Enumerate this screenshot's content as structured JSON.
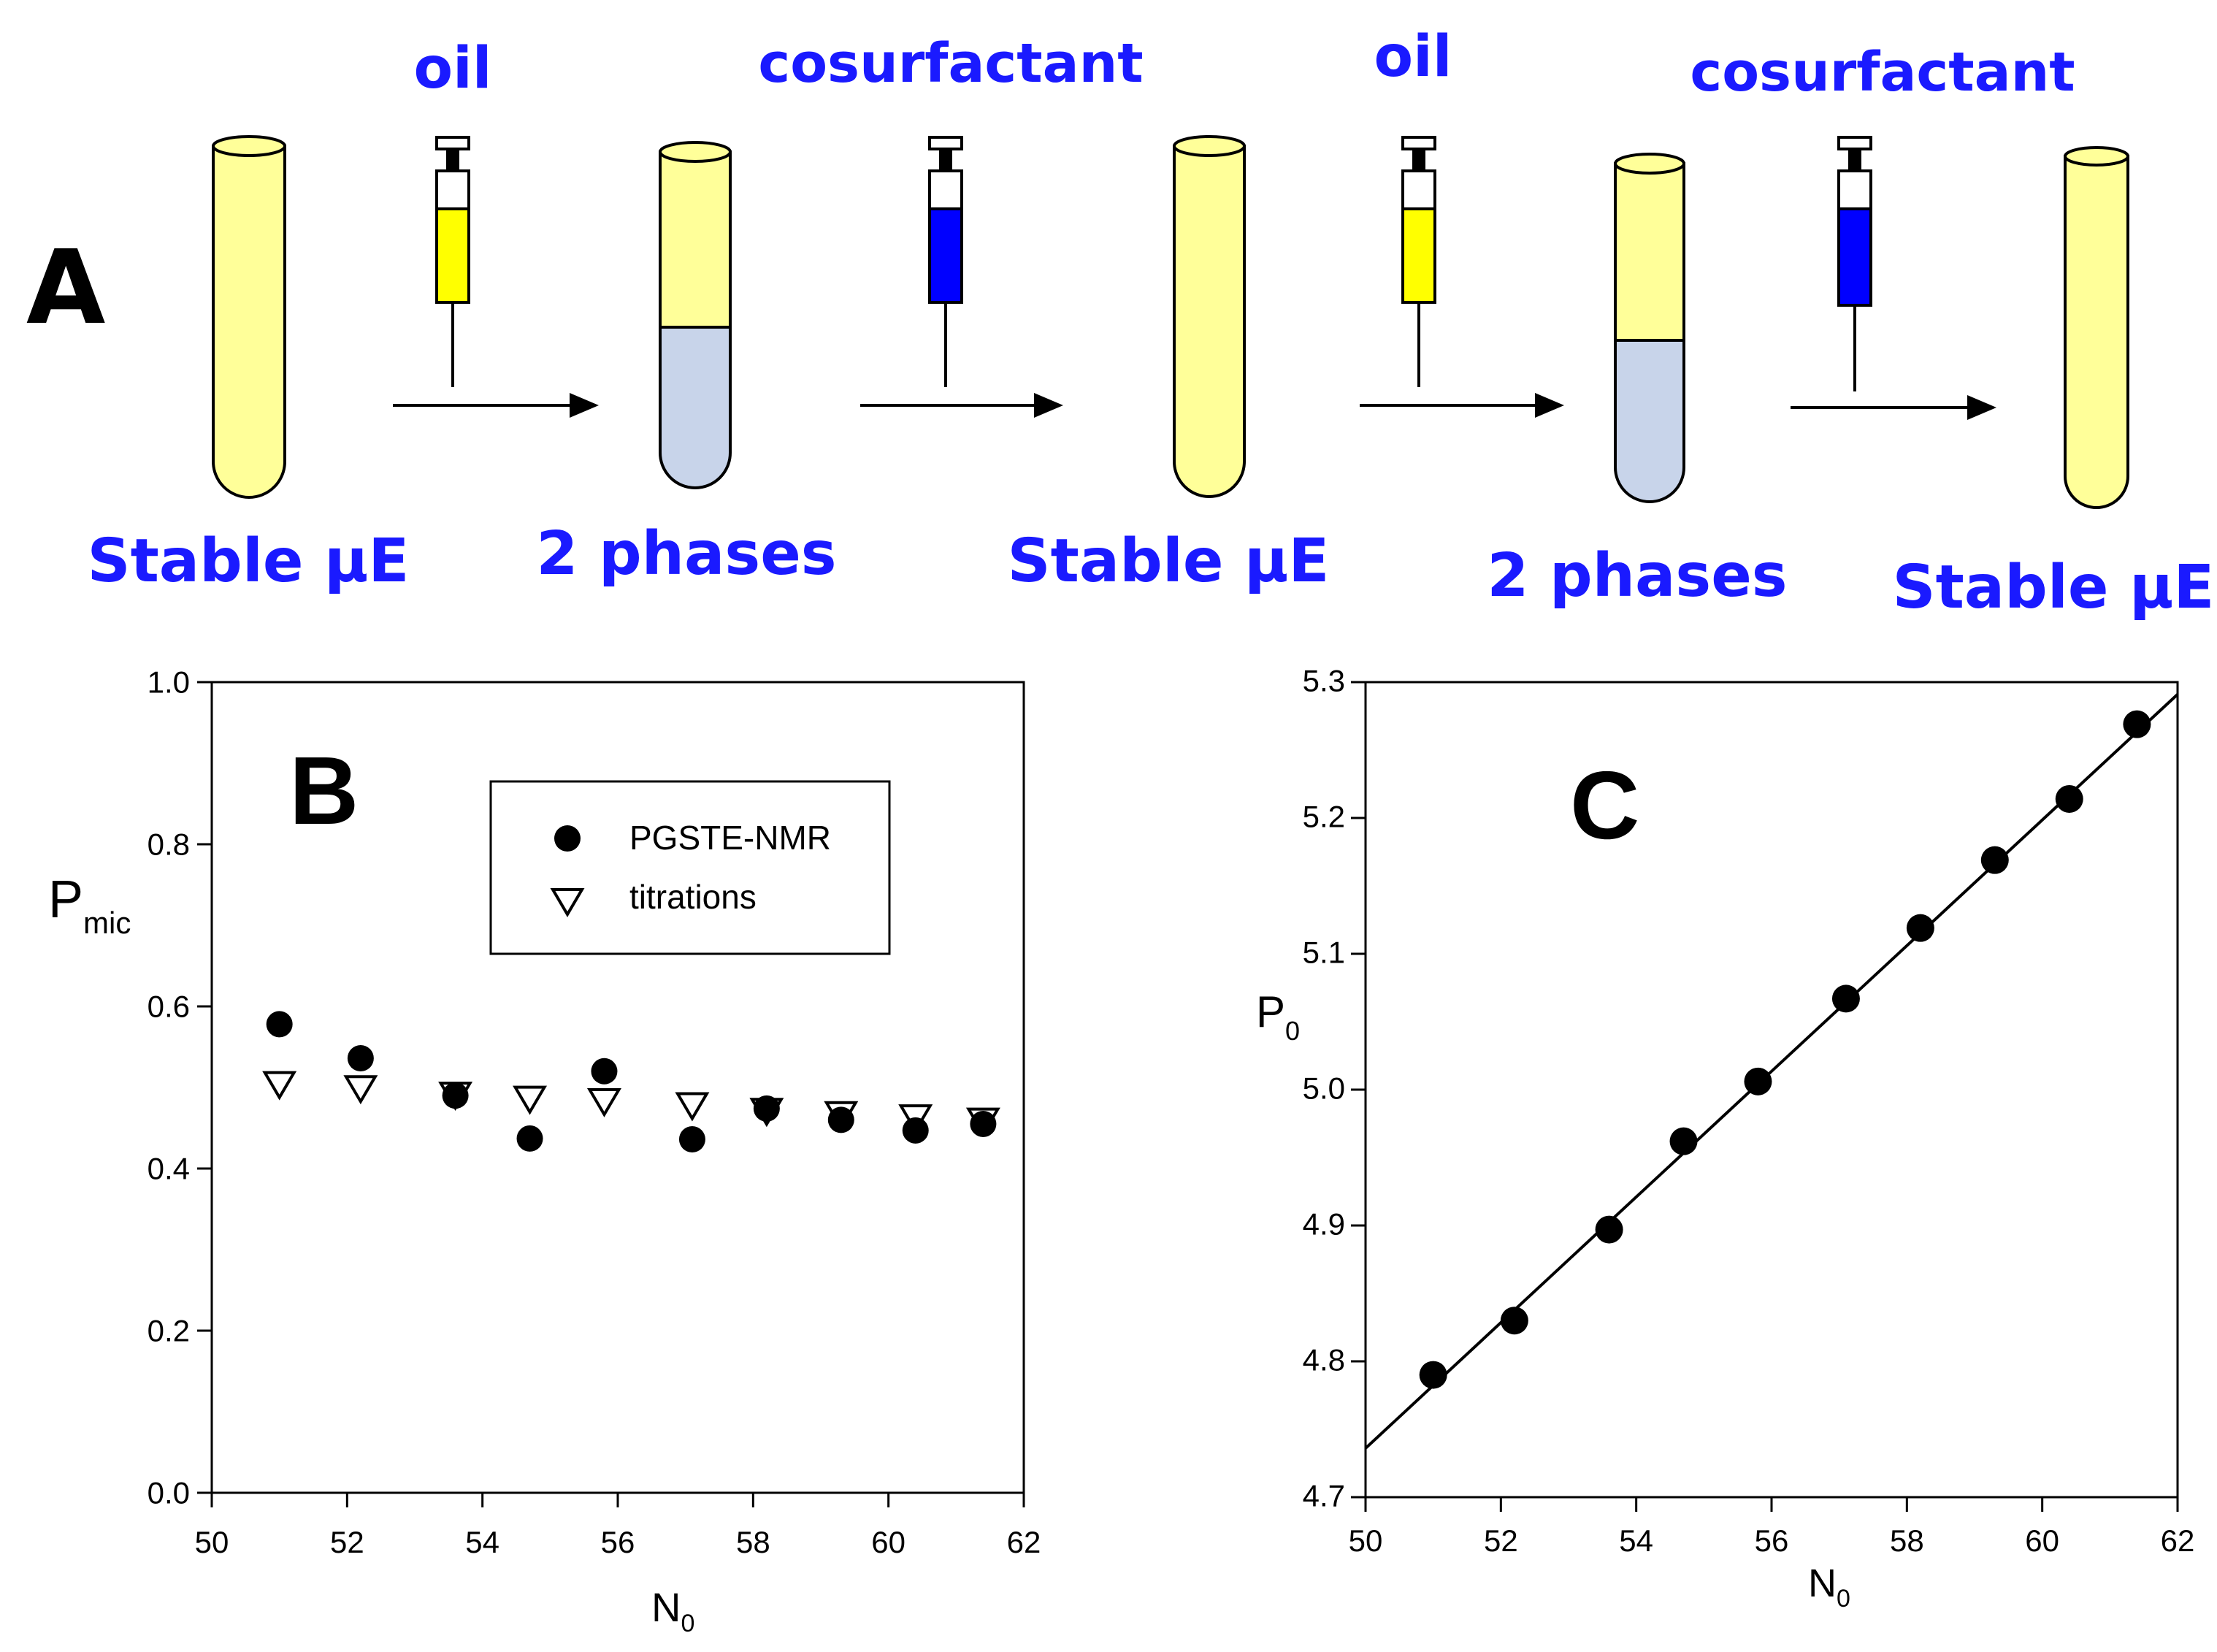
{
  "panel_a": {
    "letter": "A",
    "reagents": [
      "oil",
      "cosurfactant",
      "oil",
      "cosurfactant"
    ],
    "states": [
      "Stable μE",
      "2 phases",
      "Stable μE",
      "2 phases",
      "Stable μE"
    ],
    "colors": {
      "text": "#1a1aff",
      "oil": "#ffff00",
      "cosurfactant": "#0000ff",
      "microemulsion": "#ffff99",
      "aqueous": "#c8d4ea"
    }
  },
  "chart_data": [
    {
      "panel": "B",
      "type": "scatter",
      "xlabel_main": "N",
      "xlabel_sub": "0",
      "ylabel_main": "P",
      "ylabel_sub": "mic",
      "xlim": [
        50,
        62
      ],
      "ylim": [
        0.0,
        1.0
      ],
      "xticks": [
        "50",
        "52",
        "54",
        "56",
        "58",
        "60",
        "62"
      ],
      "yticks": [
        "0.0",
        "0.2",
        "0.4",
        "0.6",
        "0.8",
        "1.0"
      ],
      "legend_position": "top-right",
      "series": [
        {
          "name": "PGSTE-NMR",
          "marker": "filled-circle",
          "x": [
            51.0,
            52.2,
            53.6,
            54.7,
            55.8,
            57.1,
            58.2,
            59.3,
            60.4,
            61.4
          ],
          "y": [
            0.578,
            0.536,
            0.49,
            0.437,
            0.52,
            0.436,
            0.474,
            0.46,
            0.447,
            0.455
          ]
        },
        {
          "name": "titrations",
          "marker": "open-triangle-down",
          "x": [
            51.0,
            52.2,
            53.6,
            54.7,
            55.8,
            57.1,
            58.2,
            59.3,
            60.4,
            61.4
          ],
          "y": [
            0.503,
            0.498,
            0.49,
            0.485,
            0.482,
            0.477,
            0.47,
            0.466,
            0.462,
            0.458
          ]
        }
      ]
    },
    {
      "panel": "C",
      "type": "scatter",
      "xlabel_main": "N",
      "xlabel_sub": "0",
      "ylabel_main": "P",
      "ylabel_sub": "0",
      "xlim": [
        50,
        62
      ],
      "ylim": [
        4.7,
        5.3
      ],
      "xticks": [
        "50",
        "52",
        "54",
        "56",
        "58",
        "60",
        "62"
      ],
      "yticks": [
        "4.7",
        "4.8",
        "4.9",
        "5.0",
        "5.1",
        "5.2",
        "5.3"
      ],
      "series": [
        {
          "name": "P0",
          "marker": "filled-circle",
          "x": [
            51.0,
            52.2,
            53.6,
            54.7,
            55.8,
            57.1,
            58.2,
            59.3,
            60.4,
            61.4
          ],
          "y": [
            4.79,
            4.83,
            4.897,
            4.962,
            5.006,
            5.067,
            5.119,
            5.169,
            5.214,
            5.269
          ]
        }
      ],
      "fit_line": {
        "x": [
          50,
          62
        ],
        "y": [
          4.736,
          5.291
        ]
      }
    }
  ]
}
